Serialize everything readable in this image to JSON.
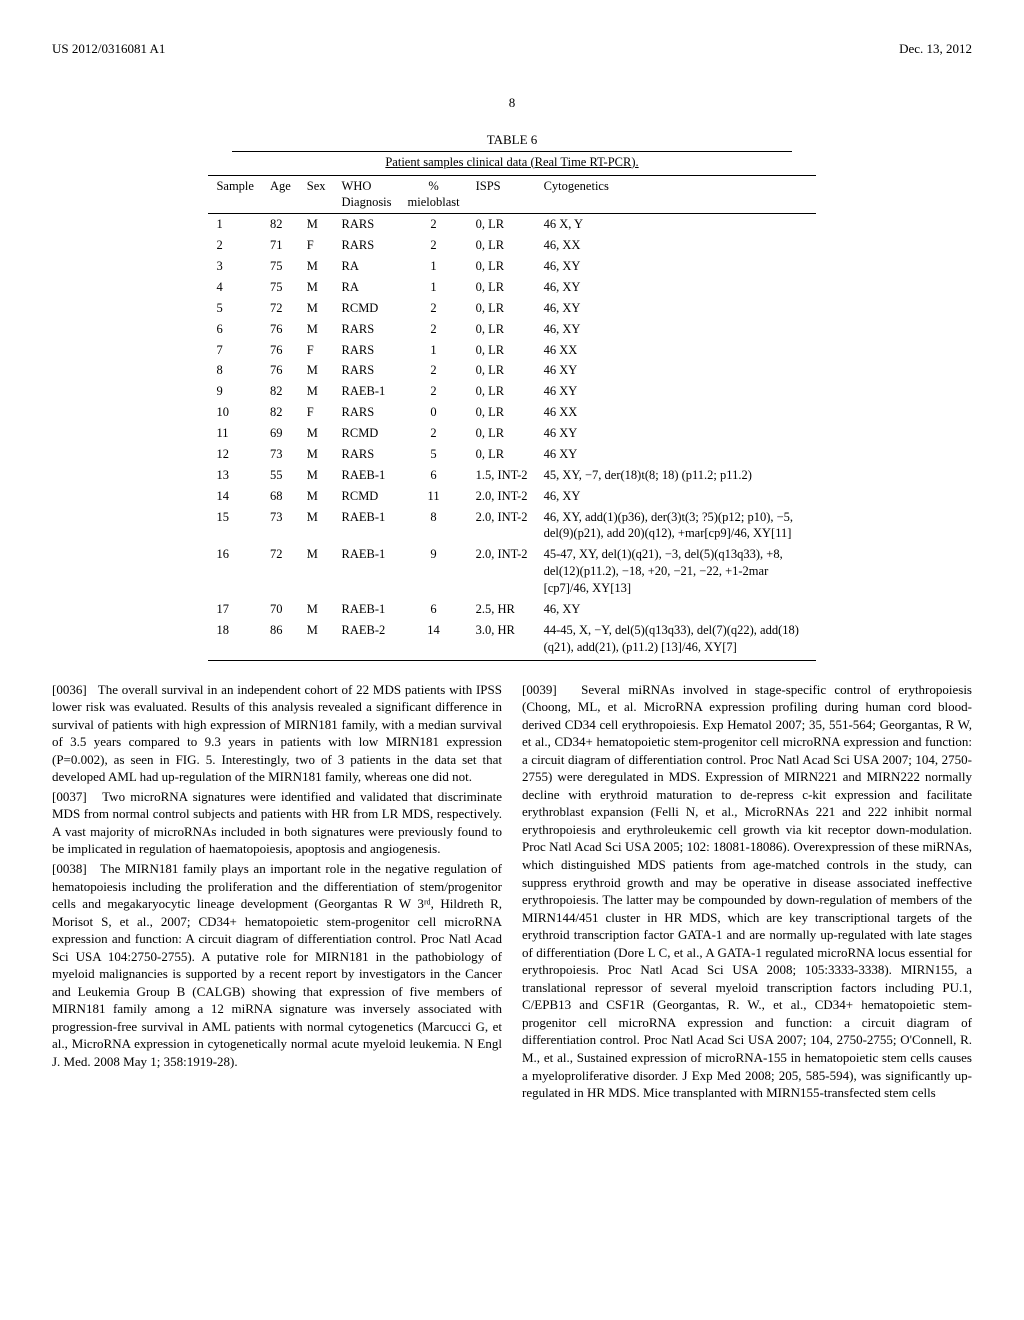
{
  "header": {
    "pub_id": "US 2012/0316081 A1",
    "pub_date": "Dec. 13, 2012"
  },
  "page_number": "8",
  "table": {
    "caption": "TABLE 6",
    "subtitle": "Patient samples clinical data (Real Time RT-PCR).",
    "columns": [
      "Sample",
      "Age",
      "Sex",
      "WHO Diagnosis",
      "% mieloblast",
      "ISPS",
      "Cytogenetics"
    ],
    "rows": [
      {
        "sample": "1",
        "age": "82",
        "sex": "M",
        "who": "RARS",
        "blast": "2",
        "isps": "0, LR",
        "cyto": "46 X, Y"
      },
      {
        "sample": "2",
        "age": "71",
        "sex": "F",
        "who": "RARS",
        "blast": "2",
        "isps": "0, LR",
        "cyto": "46, XX"
      },
      {
        "sample": "3",
        "age": "75",
        "sex": "M",
        "who": "RA",
        "blast": "1",
        "isps": "0, LR",
        "cyto": "46, XY"
      },
      {
        "sample": "4",
        "age": "75",
        "sex": "M",
        "who": "RA",
        "blast": "1",
        "isps": "0, LR",
        "cyto": "46, XY"
      },
      {
        "sample": "5",
        "age": "72",
        "sex": "M",
        "who": "RCMD",
        "blast": "2",
        "isps": "0, LR",
        "cyto": "46, XY"
      },
      {
        "sample": "6",
        "age": "76",
        "sex": "M",
        "who": "RARS",
        "blast": "2",
        "isps": "0, LR",
        "cyto": "46, XY"
      },
      {
        "sample": "7",
        "age": "76",
        "sex": "F",
        "who": "RARS",
        "blast": "1",
        "isps": "0, LR",
        "cyto": "46 XX"
      },
      {
        "sample": "8",
        "age": "76",
        "sex": "M",
        "who": "RARS",
        "blast": "2",
        "isps": "0, LR",
        "cyto": "46 XY"
      },
      {
        "sample": "9",
        "age": "82",
        "sex": "M",
        "who": "RAEB-1",
        "blast": "2",
        "isps": "0, LR",
        "cyto": "46 XY"
      },
      {
        "sample": "10",
        "age": "82",
        "sex": "F",
        "who": "RARS",
        "blast": "0",
        "isps": "0, LR",
        "cyto": "46 XX"
      },
      {
        "sample": "11",
        "age": "69",
        "sex": "M",
        "who": "RCMD",
        "blast": "2",
        "isps": "0, LR",
        "cyto": "46 XY"
      },
      {
        "sample": "12",
        "age": "73",
        "sex": "M",
        "who": "RARS",
        "blast": "5",
        "isps": "0, LR",
        "cyto": "46 XY"
      },
      {
        "sample": "13",
        "age": "55",
        "sex": "M",
        "who": "RAEB-1",
        "blast": "6",
        "isps": "1.5, INT-2",
        "cyto": "45, XY, −7, der(18)t(8; 18) (p11.2; p11.2)"
      },
      {
        "sample": "14",
        "age": "68",
        "sex": "M",
        "who": "RCMD",
        "blast": "11",
        "isps": "2.0, INT-2",
        "cyto": "46, XY"
      },
      {
        "sample": "15",
        "age": "73",
        "sex": "M",
        "who": "RAEB-1",
        "blast": "8",
        "isps": "2.0, INT-2",
        "cyto": "46, XY, add(1)(p36), der(3)t(3; ?5)(p12; p10), −5, del(9)(p21), add 20)(q12), +mar[cp9]/46, XY[11]"
      },
      {
        "sample": "16",
        "age": "72",
        "sex": "M",
        "who": "RAEB-1",
        "blast": "9",
        "isps": "2.0, INT-2",
        "cyto": "45-47, XY, del(1)(q21), −3, del(5)(q13q33), +8, del(12)(p11.2), −18, +20, −21, −22, +1-2mar [cp7]/46, XY[13]"
      },
      {
        "sample": "17",
        "age": "70",
        "sex": "M",
        "who": "RAEB-1",
        "blast": "6",
        "isps": "2.5, HR",
        "cyto": "46, XY"
      },
      {
        "sample": "18",
        "age": "86",
        "sex": "M",
        "who": "RAEB-2",
        "blast": "14",
        "isps": "3.0, HR",
        "cyto": "44-45, X, −Y, del(5)(q13q33), del(7)(q22), add(18)(q21), add(21), (p11.2) [13]/46, XY[7]"
      }
    ]
  },
  "left": {
    "p36": "[0036]   The overall survival in an independent cohort of 22 MDS patients with IPSS lower risk was evaluated. Results of this analysis revealed a significant difference in survival of patients with high expression of MIRN181 family, with a median survival of 3.5 years compared to 9.3 years in patients with low MIRN181 expression (P=0.002), as seen in FIG. 5. Interestingly, two of 3 patients in the data set that developed AML had up-regulation of the MIRN181 family, whereas one did not.",
    "p37": "[0037]   Two microRNA signatures were identified and validated that discriminate MDS from normal control subjects and patients with HR from LR MDS, respectively. A vast majority of microRNAs included in both signatures were previously found to be implicated in regulation of haematopoiesis, apoptosis and angiogenesis.",
    "p38": "[0038]   The MIRN181 family plays an important role in the negative regulation of hematopoiesis including the proliferation and the differentiation of stem/progenitor cells and megakaryocytic lineage development (Georgantas R W 3ʳᵈ, Hildreth R, Morisot S, et al., 2007; CD34+ hematopoietic stem-progenitor cell microRNA expression and function: A circuit diagram of differentiation control. Proc Natl Acad Sci USA 104:2750-2755). A putative role for MIRN181 in the pathobiology of myeloid malignancies is supported by a recent report by investigators in the Cancer and Leukemia Group B (CALGB) showing that expression of five members of MIRN181 family among a 12 miRNA signature was inversely associated with progression-free survival in AML patients with normal cytogenetics (Marcucci G, et al., MicroRNA expression in cytogenetically normal acute myeloid leukemia. N Engl J. Med. 2008 May 1; 358:1919-28)."
  },
  "right": {
    "p39": "[0039]   Several miRNAs involved in stage-specific control of erythropoiesis (Choong, ML, et al. MicroRNA expression profiling during human cord blood-derived CD34 cell erythropoiesis. Exp Hematol 2007; 35, 551-564; Georgantas, R W, et al., CD34+ hematopoietic stem-progenitor cell microRNA expression and function: a circuit diagram of differentiation control. Proc Natl Acad Sci USA 2007; 104, 2750-2755) were deregulated in MDS. Expression of MIRN221 and MIRN222 normally decline with erythroid maturation to de-repress c-kit expression and facilitate erythroblast expansion (Felli N, et al., MicroRNAs 221 and 222 inhibit normal erythropoiesis and erythroleukemic cell growth via kit receptor down-modulation. Proc Natl Acad Sci USA 2005; 102: 18081-18086). Overexpression of these miRNAs, which distinguished MDS patients from age-matched controls in the study, can suppress erythroid growth and may be operative in disease associated ineffective erythropoiesis. The latter may be compounded by down-regulation of members of the MIRN144/451 cluster in HR MDS, which are key transcriptional targets of the erythroid transcription factor GATA-1 and are normally up-regulated with late stages of differentiation (Dore L C, et al., A GATA-1 regulated microRNA locus essential for erythropoiesis. Proc Natl Acad Sci USA 2008; 105:3333-3338). MIRN155, a translational repressor of several myeloid transcription factors including PU.1, C/EPB13 and CSF1R (Georgantas, R. W., et al., CD34+ hematopoietic stem-progenitor cell microRNA expression and function: a circuit diagram of differentiation control. Proc Natl Acad Sci USA 2007; 104, 2750-2755; O'Connell, R. M., et al., Sustained expression of microRNA-155 in hematopoietic stem cells causes a myeloproliferative disorder. J Exp Med 2008; 205, 585-594), was significantly up-regulated in HR MDS. Mice transplanted with MIRN155-transfected stem cells"
  }
}
